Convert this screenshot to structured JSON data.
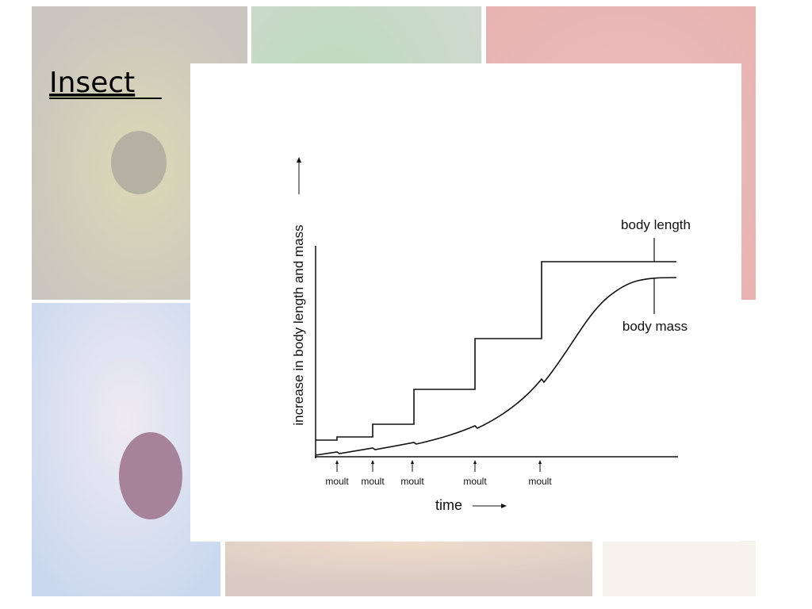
{
  "slide": {
    "title": "Insect"
  },
  "figure": {
    "y_label": "increase in body length and mass",
    "x_label": "time",
    "curve_labels": [
      "body length",
      "body mass"
    ],
    "events": [
      "moult",
      "moult",
      "moult",
      "moult",
      "moult"
    ]
  }
}
